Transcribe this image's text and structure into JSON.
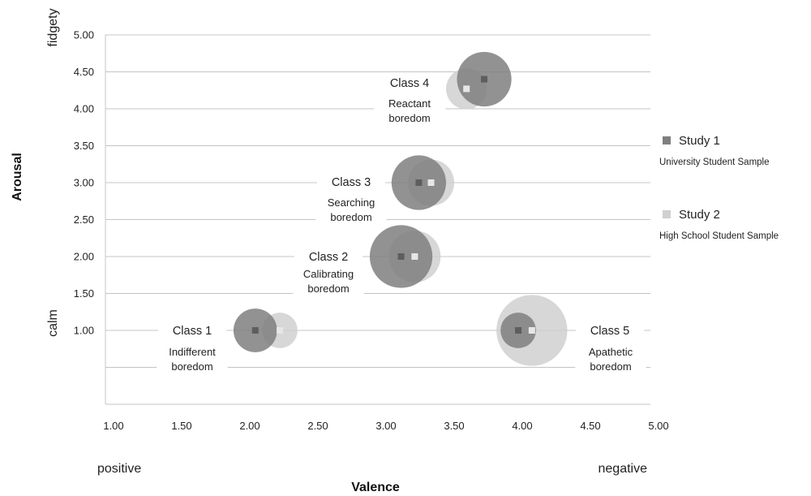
{
  "chart_data": {
    "type": "bubble",
    "xlabel": "Valence",
    "ylabel": "Arousal",
    "xlim": [
      1.0,
      5.0
    ],
    "ylim": [
      0.0,
      5.0
    ],
    "x_ticks": [
      "1.00",
      "1.50",
      "2.00",
      "2.50",
      "3.00",
      "3.50",
      "4.00",
      "4.50",
      "5.00"
    ],
    "y_ticks": [
      "1.00",
      "1.50",
      "2.00",
      "2.50",
      "3.00",
      "3.50",
      "4.00",
      "4.50",
      "5.00"
    ],
    "x_end_labels": {
      "low": "positive",
      "high": "negative"
    },
    "y_end_labels": {
      "low": "calm",
      "high": "fidgety"
    },
    "grid": "horizontal",
    "legend_position": "right",
    "series": [
      {
        "name": "Study 1",
        "description": "University Student Sample",
        "color": "#7f7f7f",
        "points": [
          {
            "x": 2.1,
            "y": 1.0,
            "r": 0.16
          },
          {
            "x": 3.17,
            "y": 2.0,
            "r": 0.23
          },
          {
            "x": 3.3,
            "y": 3.0,
            "r": 0.2
          },
          {
            "x": 3.78,
            "y": 4.4,
            "r": 0.2
          },
          {
            "x": 4.03,
            "y": 1.0,
            "r": 0.13
          }
        ]
      },
      {
        "name": "Study 2",
        "description": "High School Student Sample",
        "color": "#d0d0d0",
        "points": [
          {
            "x": 2.28,
            "y": 1.0,
            "r": 0.13
          },
          {
            "x": 3.27,
            "y": 2.0,
            "r": 0.19
          },
          {
            "x": 3.39,
            "y": 3.0,
            "r": 0.17
          },
          {
            "x": 3.65,
            "y": 4.27,
            "r": 0.15
          },
          {
            "x": 4.13,
            "y": 1.0,
            "r": 0.26
          }
        ]
      }
    ],
    "annotations": [
      {
        "title": "Class 1",
        "subtitle": [
          "Indifferent",
          "boredom"
        ]
      },
      {
        "title": "Class 2",
        "subtitle": [
          "Calibrating",
          "boredom"
        ]
      },
      {
        "title": "Class 3",
        "subtitle": [
          "Searching",
          "boredom"
        ]
      },
      {
        "title": "Class 4",
        "subtitle": [
          "Reactant",
          "boredom"
        ]
      },
      {
        "title": "Class 5",
        "subtitle": [
          "Apathetic",
          "boredom"
        ]
      }
    ]
  }
}
